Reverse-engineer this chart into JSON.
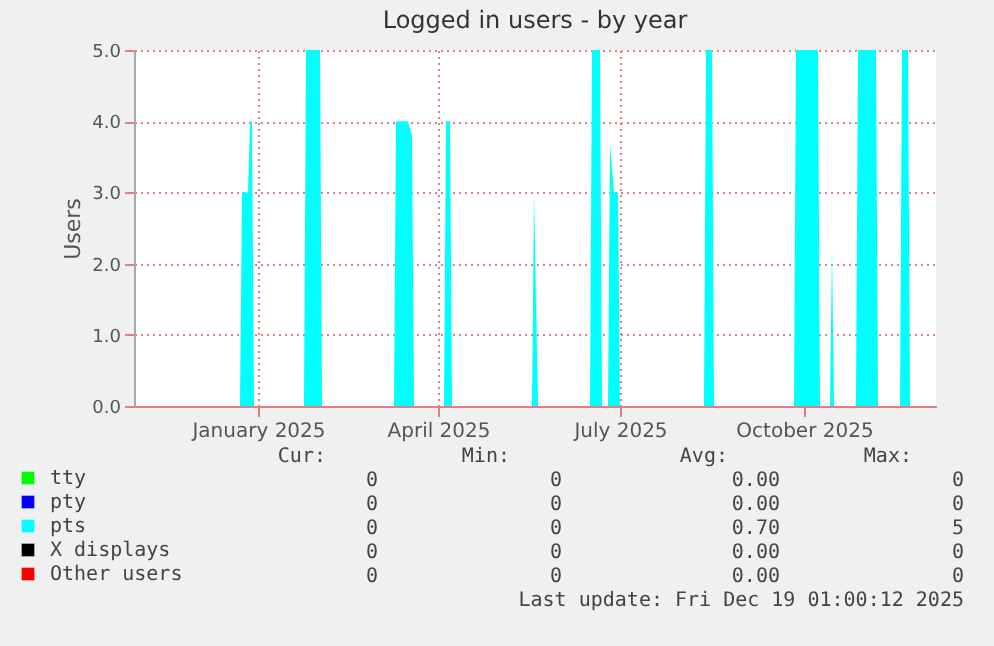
{
  "chart_data": {
    "type": "area",
    "title": "Logged in users - by year",
    "ylabel": "Users",
    "xlim": [
      "2024-11-15",
      "2025-12-21"
    ],
    "ylim": [
      0,
      5
    ],
    "yticks": [
      {
        "value": 0,
        "label": "0.0"
      },
      {
        "value": 1,
        "label": "1.0"
      },
      {
        "value": 2,
        "label": "2.0"
      },
      {
        "value": 3,
        "label": "3.0"
      },
      {
        "value": 4,
        "label": "4.0"
      },
      {
        "value": 5,
        "label": "5.0"
      }
    ],
    "xticks": [
      {
        "value": "2025-01-16",
        "label": "January 2025"
      },
      {
        "value": "2025-04-16",
        "label": "April 2025"
      },
      {
        "value": "2025-07-16",
        "label": "July 2025"
      },
      {
        "value": "2025-10-16",
        "label": "October 2025"
      }
    ],
    "grid": true,
    "legend": "bottom",
    "series": [
      {
        "name": "tty",
        "color": "#00ff00"
      },
      {
        "name": "pty",
        "color": "#0000ff"
      },
      {
        "name": "pts",
        "color": "#00ffff",
        "x": [
          "2024-11-15",
          "2025-01-07",
          "2025-01-08",
          "2025-01-11",
          "2025-01-12",
          "2025-01-13",
          "2025-01-14",
          "2025-02-08",
          "2025-02-09",
          "2025-02-16",
          "2025-02-17",
          "2025-03-25",
          "2025-03-26",
          "2025-04-01",
          "2025-04-03",
          "2025-04-04",
          "2025-04-19",
          "2025-04-20",
          "2025-04-22",
          "2025-04-23",
          "2025-06-02",
          "2025-06-03",
          "2025-06-05",
          "2025-07-01",
          "2025-07-02",
          "2025-07-06",
          "2025-07-07",
          "2025-07-10",
          "2025-07-11",
          "2025-07-13",
          "2025-07-15",
          "2025-07-16",
          "2025-08-27",
          "2025-08-28",
          "2025-08-31",
          "2025-09-01",
          "2025-10-11",
          "2025-10-12",
          "2025-10-23",
          "2025-10-24",
          "2025-10-29",
          "2025-10-30",
          "2025-10-31",
          "2025-11-11",
          "2025-11-12",
          "2025-11-21",
          "2025-11-22",
          "2025-12-03",
          "2025-12-04",
          "2025-12-07",
          "2025-12-08",
          "2025-12-19"
        ],
        "values": [
          0,
          0,
          3,
          3,
          4,
          4,
          0,
          0,
          5,
          5,
          0,
          0,
          4,
          4,
          3.8,
          0,
          0,
          4,
          4,
          0,
          0,
          3,
          0,
          0,
          5,
          5,
          0,
          0,
          3.7,
          3,
          3,
          0,
          0,
          5,
          5,
          0,
          0,
          5,
          5,
          0,
          0,
          2.2,
          0,
          0,
          5,
          5,
          0,
          0,
          5,
          5,
          0,
          0
        ]
      },
      {
        "name": "X displays",
        "color": "#000000"
      },
      {
        "name": "Other users",
        "color": "#ff0000"
      }
    ],
    "annotations": [
      "Cur:",
      "Min:",
      "Avg:",
      "Max:",
      "0",
      "0",
      "0.00",
      "0",
      "0",
      "0",
      "0.00",
      "0",
      "0",
      "0",
      "0.70",
      "5",
      "0",
      "0",
      "0.00",
      "0",
      "0",
      "0",
      "0.00",
      "0",
      "Last update: Fri Dec 19 01:00:12 2025"
    ]
  }
}
